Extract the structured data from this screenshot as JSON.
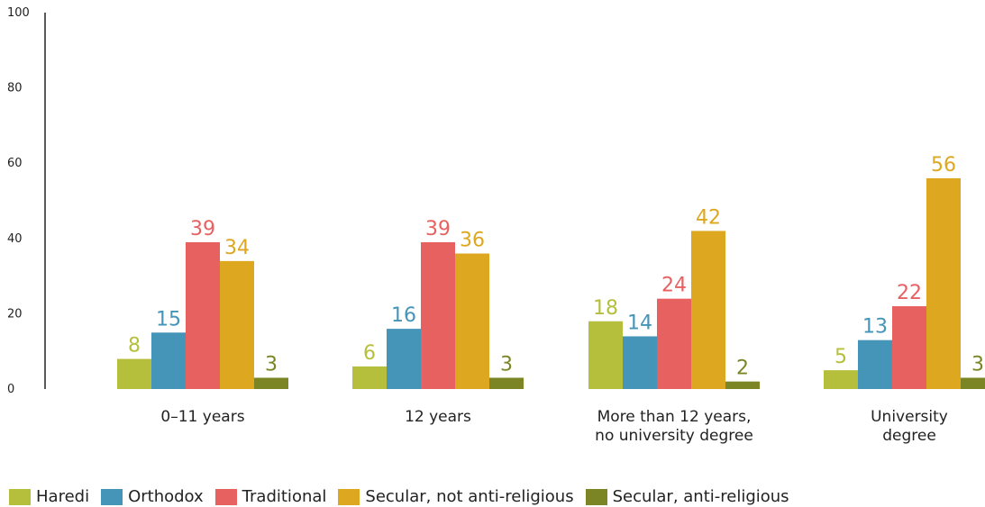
{
  "chart_data": {
    "type": "bar",
    "title": "",
    "xlabel": "",
    "ylabel": "",
    "ylim": [
      0,
      100
    ],
    "yticks": [
      0,
      20,
      40,
      60,
      80,
      100
    ],
    "categories": [
      [
        "0–11 years"
      ],
      [
        "12 years"
      ],
      [
        "More than 12 years,",
        "no university degree"
      ],
      [
        "University",
        "degree"
      ]
    ],
    "series": [
      {
        "name": "Haredi",
        "color": "#b5bf3c",
        "values": [
          8,
          6,
          18,
          5
        ]
      },
      {
        "name": "Orthodox",
        "color": "#4595b8",
        "values": [
          15,
          16,
          14,
          13
        ]
      },
      {
        "name": "Traditional",
        "color": "#e86161",
        "values": [
          39,
          39,
          24,
          22
        ]
      },
      {
        "name": "Secular, not anti-religious",
        "color": "#dda720",
        "values": [
          34,
          36,
          42,
          56
        ]
      },
      {
        "name": "Secular, anti-religious",
        "color": "#7b8526",
        "values": [
          3,
          3,
          2,
          3
        ]
      }
    ],
    "legend_position": "bottom",
    "grid": false
  }
}
